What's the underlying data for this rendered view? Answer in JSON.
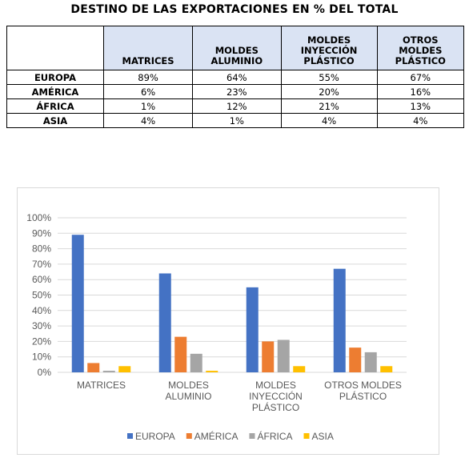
{
  "title": "DESTINO DE LAS EXPORTACIONES EN % DEL TOTAL",
  "table": {
    "columns": [
      "MATRICES",
      "MOLDES\nALUMINIO",
      "MOLDES\nINYECCIÓN\nPLÁSTICO",
      "OTROS\nMOLDES\nPLÁSTICO"
    ],
    "rows": [
      {
        "label": "EUROPA",
        "cells": [
          "89%",
          "64%",
          "55%",
          "67%"
        ]
      },
      {
        "label": "AMÉRICA",
        "cells": [
          "6%",
          "23%",
          "20%",
          "16%"
        ]
      },
      {
        "label": "ÁFRICA",
        "cells": [
          "1%",
          "12%",
          "21%",
          "13%"
        ]
      },
      {
        "label": "ASIA",
        "cells": [
          "4%",
          "1%",
          "4%",
          "4%"
        ]
      }
    ]
  },
  "chart_data": {
    "type": "bar",
    "categories": [
      "MATRICES",
      "MOLDES\nALUMINIO",
      "MOLDES\nINYECCIÓN\nPLÁSTICO",
      "OTROS MOLDES\nPLÁSTICO"
    ],
    "series": [
      {
        "name": "EUROPA",
        "color": "#4472c4",
        "values": [
          89,
          64,
          55,
          67
        ]
      },
      {
        "name": "AMÉRICA",
        "color": "#ed7d31",
        "values": [
          6,
          23,
          20,
          16
        ]
      },
      {
        "name": "ÁFRICA",
        "color": "#a5a5a5",
        "values": [
          1,
          12,
          21,
          13
        ]
      },
      {
        "name": "ASIA",
        "color": "#ffc000",
        "values": [
          4,
          1,
          4,
          4
        ]
      }
    ],
    "yticks": [
      "0%",
      "10%",
      "20%",
      "30%",
      "40%",
      "50%",
      "60%",
      "70%",
      "80%",
      "90%",
      "100%"
    ],
    "ylim": [
      0,
      100
    ],
    "grid": true,
    "legend": "bottom"
  }
}
